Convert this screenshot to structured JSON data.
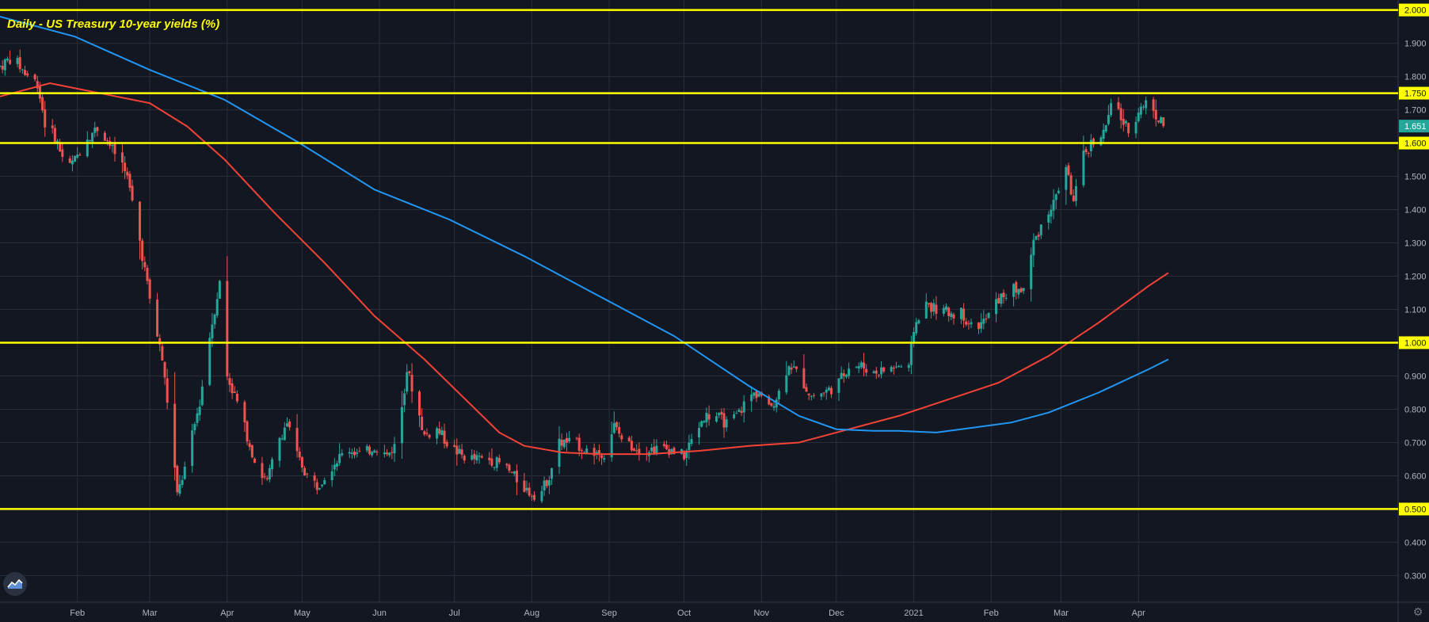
{
  "title": "Daily - US Treasury 10-year yields (%)",
  "icons": {
    "logo": "tradingview-logo-icon",
    "settings": "gear-icon"
  },
  "colors": {
    "background": "#131722",
    "grid": "#2a2e39",
    "axis_text": "#b2b5be",
    "hline": "#ffff00",
    "up": "#26a69a",
    "down": "#ef5350",
    "ma_fast": "#f44336",
    "ma_slow": "#2196f3",
    "last_price_bg": "#26a69a"
  },
  "chart_data": {
    "type": "candlestick",
    "title": "Daily - US Treasury 10-year yields (%)",
    "y_axis": {
      "ticks": [
        "2.000",
        "1.900",
        "1.800",
        "1.750",
        "1.700",
        "1.651",
        "1.600",
        "1.500",
        "1.400",
        "1.300",
        "1.200",
        "1.100",
        "1.000",
        "0.900",
        "0.800",
        "0.700",
        "0.600",
        "0.500",
        "0.400",
        "0.300"
      ],
      "range": [
        0.22,
        2.03
      ],
      "position": "right"
    },
    "x_axis": {
      "ticks": [
        "Feb",
        "Mar",
        "Apr",
        "May",
        "Jun",
        "Jul",
        "Aug",
        "Sep",
        "Oct",
        "Nov",
        "Dec",
        "2021",
        "Feb",
        "Mar",
        "Apr"
      ],
      "tick_days": [
        31,
        60,
        91,
        121,
        152,
        182,
        213,
        244,
        274,
        305,
        335,
        366,
        397,
        425,
        456
      ],
      "range_days": [
        0,
        560
      ]
    },
    "horizontal_lines": [
      {
        "value": 2.0,
        "label": "2.000"
      },
      {
        "value": 1.75,
        "label": "1.750"
      },
      {
        "value": 1.6,
        "label": "1.600"
      },
      {
        "value": 1.0,
        "label": "1.000"
      },
      {
        "value": 0.5,
        "label": "0.500"
      }
    ],
    "last_price": {
      "value": 1.651,
      "label": "1.651"
    },
    "anchors": [
      [
        0,
        1.83
      ],
      [
        5,
        1.86
      ],
      [
        10,
        1.81
      ],
      [
        15,
        1.78
      ],
      [
        18,
        1.66
      ],
      [
        22,
        1.62
      ],
      [
        27,
        1.52
      ],
      [
        30,
        1.55
      ],
      [
        35,
        1.62
      ],
      [
        40,
        1.65
      ],
      [
        45,
        1.58
      ],
      [
        50,
        1.53
      ],
      [
        55,
        1.35
      ],
      [
        60,
        1.13
      ],
      [
        65,
        0.95
      ],
      [
        69,
        0.7
      ],
      [
        71,
        0.54
      ],
      [
        74,
        0.62
      ],
      [
        77,
        0.72
      ],
      [
        80,
        0.82
      ],
      [
        84,
        1.02
      ],
      [
        88,
        1.18
      ],
      [
        91,
        0.9
      ],
      [
        95,
        0.82
      ],
      [
        99,
        0.72
      ],
      [
        103,
        0.62
      ],
      [
        107,
        0.58
      ],
      [
        111,
        0.7
      ],
      [
        115,
        0.76
      ],
      [
        119,
        0.66
      ],
      [
        123,
        0.6
      ],
      [
        127,
        0.57
      ],
      [
        131,
        0.61
      ],
      [
        135,
        0.65
      ],
      [
        140,
        0.68
      ],
      [
        145,
        0.66
      ],
      [
        150,
        0.69
      ],
      [
        155,
        0.66
      ],
      [
        159,
        0.7
      ],
      [
        163,
        0.92
      ],
      [
        166,
        0.84
      ],
      [
        170,
        0.72
      ],
      [
        175,
        0.74
      ],
      [
        180,
        0.69
      ],
      [
        185,
        0.66
      ],
      [
        190,
        0.65
      ],
      [
        196,
        0.65
      ],
      [
        202,
        0.63
      ],
      [
        208,
        0.58
      ],
      [
        212,
        0.55
      ],
      [
        216,
        0.54
      ],
      [
        220,
        0.6
      ],
      [
        224,
        0.7
      ],
      [
        230,
        0.7
      ],
      [
        236,
        0.67
      ],
      [
        242,
        0.67
      ],
      [
        246,
        0.75
      ],
      [
        250,
        0.7
      ],
      [
        256,
        0.68
      ],
      [
        262,
        0.68
      ],
      [
        268,
        0.68
      ],
      [
        274,
        0.66
      ],
      [
        278,
        0.72
      ],
      [
        282,
        0.78
      ],
      [
        287,
        0.78
      ],
      [
        292,
        0.75
      ],
      [
        296,
        0.79
      ],
      [
        300,
        0.84
      ],
      [
        304,
        0.85
      ],
      [
        308,
        0.8
      ],
      [
        312,
        0.85
      ],
      [
        316,
        0.94
      ],
      [
        320,
        0.9
      ],
      [
        325,
        0.84
      ],
      [
        330,
        0.85
      ],
      [
        335,
        0.87
      ],
      [
        340,
        0.93
      ],
      [
        345,
        0.93
      ],
      [
        350,
        0.91
      ],
      [
        355,
        0.92
      ],
      [
        360,
        0.93
      ],
      [
        364,
        0.92
      ],
      [
        366,
        1.04
      ],
      [
        370,
        1.12
      ],
      [
        375,
        1.1
      ],
      [
        380,
        1.09
      ],
      [
        385,
        1.09
      ],
      [
        390,
        1.04
      ],
      [
        395,
        1.07
      ],
      [
        400,
        1.13
      ],
      [
        405,
        1.16
      ],
      [
        410,
        1.16
      ],
      [
        414,
        1.3
      ],
      [
        418,
        1.37
      ],
      [
        422,
        1.42
      ],
      [
        427,
        1.53
      ],
      [
        430,
        1.42
      ],
      [
        434,
        1.56
      ],
      [
        438,
        1.61
      ],
      [
        442,
        1.63
      ],
      [
        446,
        1.73
      ],
      [
        450,
        1.66
      ],
      [
        453,
        1.63
      ],
      [
        456,
        1.7
      ],
      [
        460,
        1.73
      ],
      [
        464,
        1.67
      ],
      [
        468,
        1.651
      ]
    ],
    "series": [
      {
        "name": "",
        "type": "moving_average",
        "color": "#f44336",
        "points": [
          [
            0,
            1.74
          ],
          [
            20,
            1.78
          ],
          [
            40,
            1.75
          ],
          [
            60,
            1.72
          ],
          [
            75,
            1.65
          ],
          [
            90,
            1.55
          ],
          [
            110,
            1.39
          ],
          [
            130,
            1.24
          ],
          [
            150,
            1.08
          ],
          [
            170,
            0.95
          ],
          [
            185,
            0.84
          ],
          [
            200,
            0.73
          ],
          [
            210,
            0.69
          ],
          [
            225,
            0.67
          ],
          [
            240,
            0.665
          ],
          [
            260,
            0.665
          ],
          [
            280,
            0.675
          ],
          [
            300,
            0.69
          ],
          [
            320,
            0.7
          ],
          [
            340,
            0.74
          ],
          [
            360,
            0.78
          ],
          [
            380,
            0.83
          ],
          [
            400,
            0.88
          ],
          [
            420,
            0.96
          ],
          [
            440,
            1.06
          ],
          [
            460,
            1.17
          ],
          [
            468,
            1.21
          ]
        ]
      },
      {
        "name": "",
        "type": "moving_average",
        "color": "#2196f3",
        "points": [
          [
            0,
            1.98
          ],
          [
            30,
            1.92
          ],
          [
            60,
            1.82
          ],
          [
            90,
            1.73
          ],
          [
            120,
            1.6
          ],
          [
            150,
            1.46
          ],
          [
            180,
            1.37
          ],
          [
            210,
            1.26
          ],
          [
            240,
            1.14
          ],
          [
            270,
            1.02
          ],
          [
            300,
            0.87
          ],
          [
            320,
            0.78
          ],
          [
            335,
            0.74
          ],
          [
            350,
            0.735
          ],
          [
            360,
            0.735
          ],
          [
            375,
            0.73
          ],
          [
            390,
            0.745
          ],
          [
            405,
            0.76
          ],
          [
            420,
            0.79
          ],
          [
            440,
            0.85
          ],
          [
            460,
            0.92
          ],
          [
            468,
            0.95
          ]
        ]
      }
    ]
  }
}
